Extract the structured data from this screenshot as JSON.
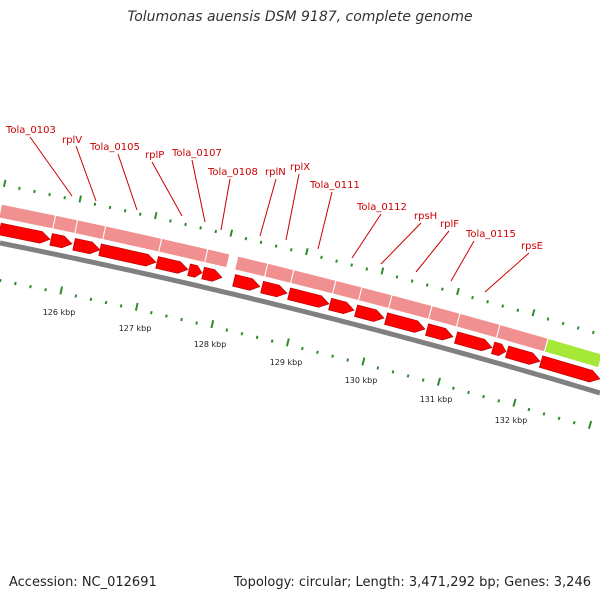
{
  "title": "Tolumonas auensis DSM 9187, complete genome",
  "footer": {
    "accession": "Accession: NC_012691",
    "summary": "Topology: circular; Length: 3,471,292 bp; Genes: 3,246"
  },
  "scale_labels": [
    "126 kbp",
    "127 kbp",
    "128 kbp",
    "129 kbp",
    "130 kbp",
    "131 kbp",
    "132 kbp"
  ],
  "gene_labels": [
    "Tola_0103",
    "rplV",
    "Tola_0105",
    "rplP",
    "Tola_0107",
    "Tola_0108",
    "rplN",
    "rplX",
    "Tola_0111",
    "Tola_0112",
    "rpsH",
    "rplF",
    "Tola_0115",
    "rpsE"
  ],
  "colors": {
    "gene_band": "#f09090",
    "gene_band_highlight": "#a6e838",
    "arrow": "#ff0000",
    "backbone": "#808080",
    "tick": "#2e8b2e",
    "label": "#cc0000"
  }
}
